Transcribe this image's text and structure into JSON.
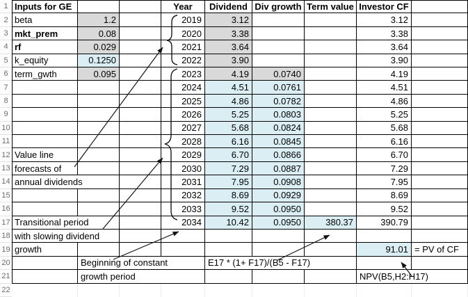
{
  "colors": {
    "gray_fill": "#d9d9d9",
    "blue_fill": "#daeef3",
    "grid_border": "#000000",
    "row_header_text": "#6d6d6d"
  },
  "row_headers": [
    "1",
    "2",
    "3",
    "4",
    "5",
    "6",
    "7",
    "8",
    "9",
    "10",
    "11",
    "12",
    "13",
    "14",
    "15",
    "16",
    "17",
    "18",
    "19",
    "20",
    "21",
    "22"
  ],
  "inputs": {
    "title": "Inputs for GE",
    "items": [
      {
        "label": "beta",
        "value": "1.2",
        "bold": false,
        "fill": "gray"
      },
      {
        "label": "mkt_prem",
        "value": "0.08",
        "bold": true,
        "fill": "gray"
      },
      {
        "label": "rf",
        "value": "0.029",
        "bold": true,
        "fill": "gray"
      },
      {
        "label": "k_equity",
        "value": "0.1250",
        "bold": false,
        "fill": "blue"
      },
      {
        "label": "term_gwth",
        "value": "0.095",
        "bold": false,
        "fill": "gray"
      }
    ]
  },
  "dividend_table": {
    "headers": {
      "year": "Year",
      "dividend": "Dividend",
      "div_growth": "Div growth",
      "term_value": "Term value",
      "investor_cf": "Investor CF"
    },
    "rows": [
      {
        "year": "2019",
        "dividend": "3.12",
        "div_growth": "",
        "term_value": "",
        "investor_cf": "3.12",
        "fills": {
          "dividend": "gray",
          "div_growth": "",
          "term_value": ""
        }
      },
      {
        "year": "2020",
        "dividend": "3.38",
        "div_growth": "",
        "term_value": "",
        "investor_cf": "3.38",
        "fills": {
          "dividend": "gray",
          "div_growth": "",
          "term_value": ""
        }
      },
      {
        "year": "2021",
        "dividend": "3.64",
        "div_growth": "",
        "term_value": "",
        "investor_cf": "3.64",
        "fills": {
          "dividend": "gray",
          "div_growth": "",
          "term_value": ""
        }
      },
      {
        "year": "2022",
        "dividend": "3.90",
        "div_growth": "",
        "term_value": "",
        "investor_cf": "3.90",
        "fills": {
          "dividend": "gray",
          "div_growth": "",
          "term_value": ""
        }
      },
      {
        "year": "2023",
        "dividend": "4.19",
        "div_growth": "0.0740",
        "term_value": "",
        "investor_cf": "4.19",
        "fills": {
          "dividend": "gray",
          "div_growth": "gray",
          "term_value": ""
        }
      },
      {
        "year": "2024",
        "dividend": "4.51",
        "div_growth": "0.0761",
        "term_value": "",
        "investor_cf": "4.51",
        "fills": {
          "dividend": "blue",
          "div_growth": "blue",
          "term_value": ""
        }
      },
      {
        "year": "2025",
        "dividend": "4.86",
        "div_growth": "0.0782",
        "term_value": "",
        "investor_cf": "4.86",
        "fills": {
          "dividend": "blue",
          "div_growth": "blue",
          "term_value": ""
        }
      },
      {
        "year": "2026",
        "dividend": "5.25",
        "div_growth": "0.0803",
        "term_value": "",
        "investor_cf": "5.25",
        "fills": {
          "dividend": "blue",
          "div_growth": "blue",
          "term_value": ""
        }
      },
      {
        "year": "2027",
        "dividend": "5.68",
        "div_growth": "0.0824",
        "term_value": "",
        "investor_cf": "5.68",
        "fills": {
          "dividend": "blue",
          "div_growth": "blue",
          "term_value": ""
        }
      },
      {
        "year": "2028",
        "dividend": "6.16",
        "div_growth": "0.0845",
        "term_value": "",
        "investor_cf": "6.16",
        "fills": {
          "dividend": "blue",
          "div_growth": "blue",
          "term_value": ""
        }
      },
      {
        "year": "2029",
        "dividend": "6.70",
        "div_growth": "0.0866",
        "term_value": "",
        "investor_cf": "6.70",
        "fills": {
          "dividend": "blue",
          "div_growth": "blue",
          "term_value": ""
        }
      },
      {
        "year": "2030",
        "dividend": "7.29",
        "div_growth": "0.0887",
        "term_value": "",
        "investor_cf": "7.29",
        "fills": {
          "dividend": "blue",
          "div_growth": "blue",
          "term_value": ""
        }
      },
      {
        "year": "2031",
        "dividend": "7.95",
        "div_growth": "0.0908",
        "term_value": "",
        "investor_cf": "7.95",
        "fills": {
          "dividend": "blue",
          "div_growth": "blue",
          "term_value": ""
        }
      },
      {
        "year": "2032",
        "dividend": "8.69",
        "div_growth": "0.0929",
        "term_value": "",
        "investor_cf": "8.69",
        "fills": {
          "dividend": "blue",
          "div_growth": "blue",
          "term_value": ""
        }
      },
      {
        "year": "2033",
        "dividend": "9.52",
        "div_growth": "0.0950",
        "term_value": "",
        "investor_cf": "9.52",
        "fills": {
          "dividend": "blue",
          "div_growth": "blue",
          "term_value": ""
        }
      },
      {
        "year": "2034",
        "dividend": "10.42",
        "div_growth": "0.0950",
        "term_value": "380.37",
        "investor_cf": "390.79",
        "fills": {
          "dividend": "blue",
          "div_growth": "blue",
          "term_value": "blue"
        }
      }
    ]
  },
  "annotations": {
    "value_line_note": [
      "Value line",
      "forecasts of",
      "annual dividends"
    ],
    "transitional_note": [
      "Transitional period",
      "with slowing dividend",
      "growth"
    ],
    "constant_growth_note": [
      "Beginning of constant",
      "growth period"
    ],
    "term_value_formula": "E17 * (1+ F17)/(B5 - F17)",
    "npv_formula": "NPV(B5,H2:H17)",
    "pv_result": "91.01",
    "pv_result_label": "= PV of CF"
  }
}
